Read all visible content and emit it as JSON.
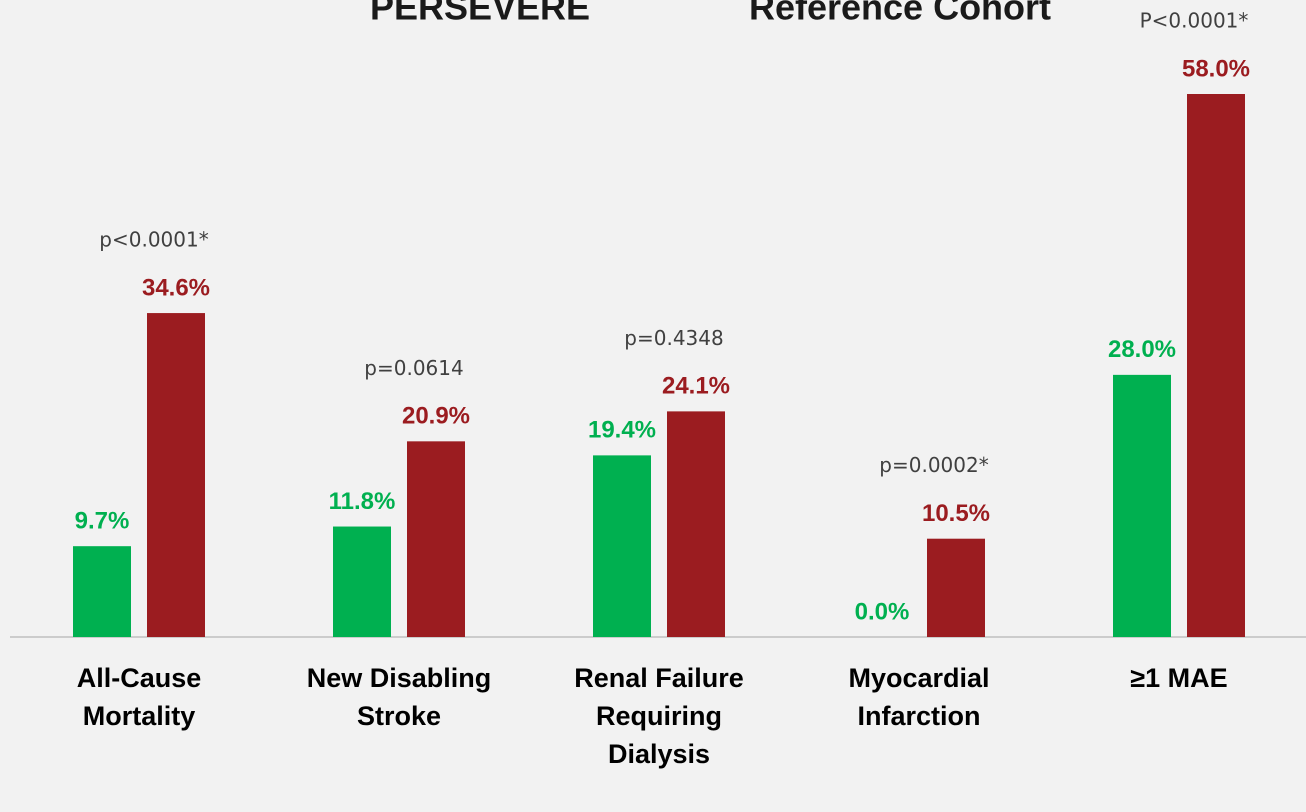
{
  "chart_data": {
    "type": "bar",
    "categories": [
      "All-Cause\nMortality",
      "New Disabling\nStroke",
      "Renal Failure\nRequiring\nDialysis",
      "Myocardial\nInfarction",
      "≥1 MAE"
    ],
    "series": [
      {
        "name": "PERSEVERE",
        "color": "#00b050",
        "values": [
          9.7,
          11.8,
          19.4,
          0.0,
          28.0
        ],
        "value_labels": [
          "9.7%",
          "11.8%",
          "19.4%",
          "0.0%",
          "28.0%"
        ]
      },
      {
        "name": "Reference Cohort",
        "color": "#9b1c20",
        "values": [
          34.6,
          20.9,
          24.1,
          10.5,
          58.0
        ],
        "value_labels": [
          "34.6%",
          "20.9%",
          "24.1%",
          "10.5%",
          "58.0%"
        ]
      }
    ],
    "annotations": [
      "p<0.0001*",
      "p=0.0614",
      "p=0.4348",
      "p=0.0002*",
      "P<0.0001*"
    ],
    "legend": "top"
  }
}
